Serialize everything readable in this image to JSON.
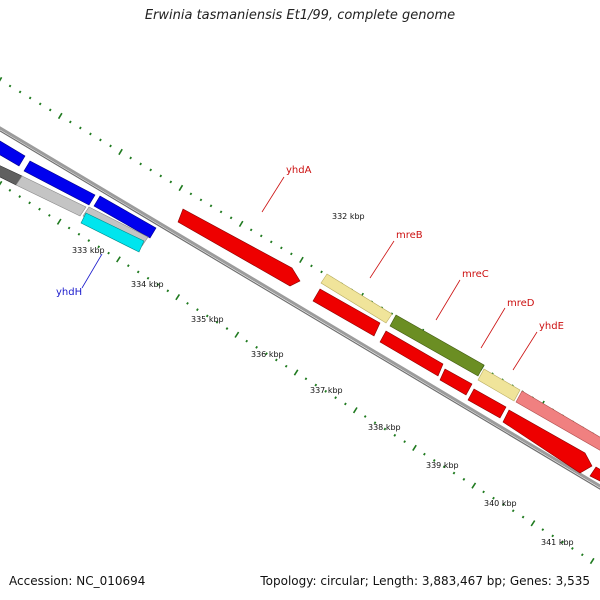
{
  "title": "Erwinia tasmaniensis Et1/99, complete genome",
  "footer": {
    "accession": "Accession: NC_010694",
    "summary": "Topology: circular; Length: 3,883,467 bp; Genes: 3,535"
  },
  "ticks": [
    "332 kbp",
    "333 kbp",
    "334 kbp",
    "335 kbp",
    "336 kbp",
    "337 kbp",
    "338 kbp",
    "339 kbp",
    "340 kbp",
    "341 kbp"
  ],
  "genes": [
    {
      "name": "yhdH",
      "color": "#1a1acc"
    },
    {
      "name": "yhdA",
      "color": "#cc1111"
    },
    {
      "name": "mreB",
      "color": "#cc1111"
    },
    {
      "name": "mreC",
      "color": "#cc1111"
    },
    {
      "name": "mreD",
      "color": "#cc1111"
    },
    {
      "name": "yhdE",
      "color": "#cc1111"
    }
  ],
  "colors": {
    "backbone": "#8a8a8a",
    "ticks": "#1f7a1f",
    "red": "#ee0000",
    "blue": "#0000ee",
    "cyan": "#00e5ee",
    "grey": "#c4c4c4",
    "dark_grey": "#606060",
    "yellow": "#f0e49a",
    "olive": "#6b8e23",
    "pink": "#f08080"
  }
}
